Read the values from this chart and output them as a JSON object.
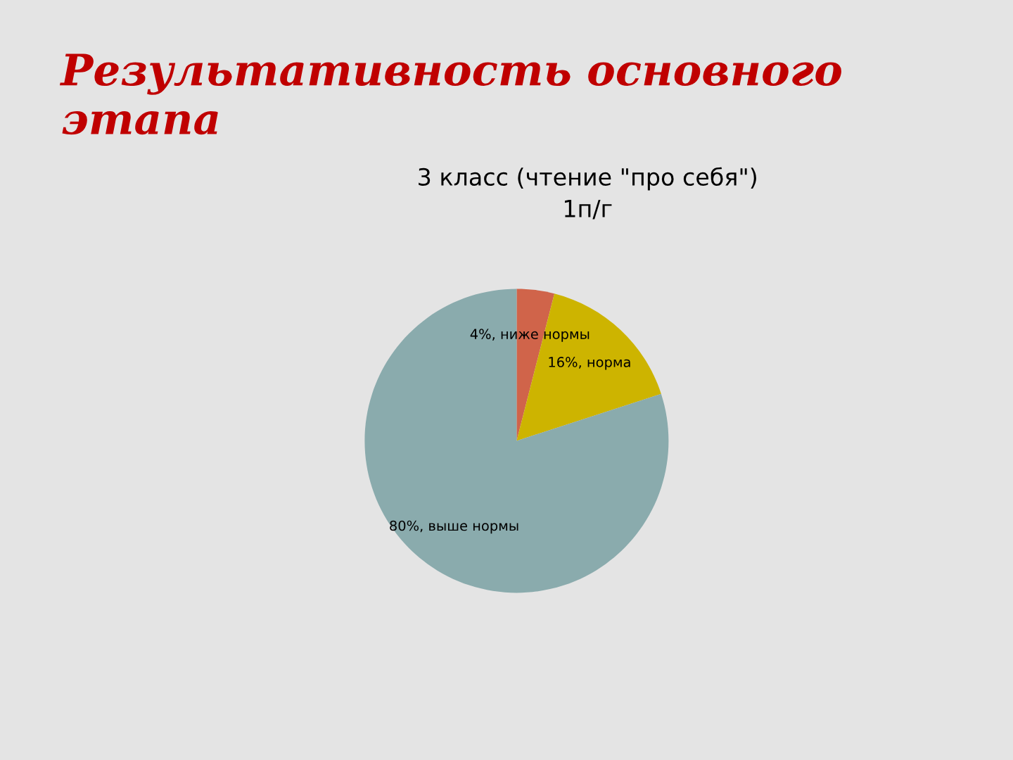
{
  "chart_data": {
    "type": "pie",
    "title": "Результативность основного этапа",
    "subtitle": "3 класс (чтение \"про себя\")\n1п/г",
    "categories": [
      "ниже нормы",
      "норма",
      "выше нормы"
    ],
    "values": [
      4,
      16,
      80
    ],
    "value_labels": [
      "4%",
      "16%",
      "80%"
    ],
    "colors": [
      "#d0644a",
      "#cdb400",
      "#8aabad"
    ],
    "legend": false
  }
}
